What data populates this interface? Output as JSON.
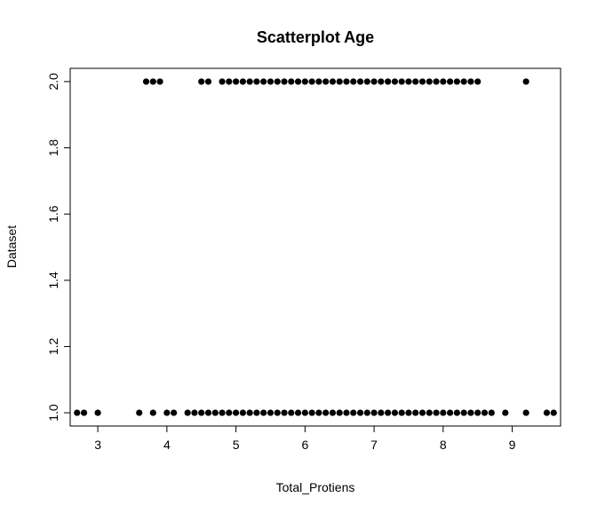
{
  "chart_data": {
    "type": "scatter",
    "title": "Scatterplot Age",
    "xlabel": "Total_Protiens",
    "ylabel": "Dataset",
    "xlim": [
      2.6,
      9.7
    ],
    "ylim": [
      0.96,
      2.04
    ],
    "x_ticks": [
      3,
      4,
      5,
      6,
      7,
      8,
      9
    ],
    "y_ticks": [
      1.0,
      1.2,
      1.4,
      1.6,
      1.8,
      2.0
    ],
    "y_tick_labels": [
      "1.0",
      "1.2",
      "1.4",
      "1.6",
      "1.8",
      "2.0"
    ],
    "point_color": "#000000",
    "grid": false,
    "series": [
      {
        "x": [
          3.7,
          3.8,
          3.9,
          4.5,
          4.6,
          4.8,
          4.9,
          5.0,
          5.1,
          5.2,
          5.3,
          5.4,
          5.5,
          5.6,
          5.7,
          5.8,
          5.9,
          6.0,
          6.1,
          6.2,
          6.3,
          6.4,
          6.5,
          6.6,
          6.7,
          6.8,
          6.9,
          7.0,
          7.1,
          7.2,
          7.3,
          7.4,
          7.5,
          7.6,
          7.7,
          7.8,
          7.9,
          8.0,
          8.1,
          8.2,
          8.3,
          8.4,
          8.5,
          9.2
        ],
        "y": [
          2,
          2,
          2,
          2,
          2,
          2,
          2,
          2,
          2,
          2,
          2,
          2,
          2,
          2,
          2,
          2,
          2,
          2,
          2,
          2,
          2,
          2,
          2,
          2,
          2,
          2,
          2,
          2,
          2,
          2,
          2,
          2,
          2,
          2,
          2,
          2,
          2,
          2,
          2,
          2,
          2,
          2,
          2,
          2
        ]
      },
      {
        "x": [
          2.7,
          2.8,
          3.0,
          3.6,
          3.8,
          4.0,
          4.1,
          4.3,
          4.4,
          4.5,
          4.6,
          4.7,
          4.8,
          4.9,
          5.0,
          5.1,
          5.2,
          5.3,
          5.4,
          5.5,
          5.6,
          5.7,
          5.8,
          5.9,
          6.0,
          6.1,
          6.2,
          6.3,
          6.4,
          6.5,
          6.6,
          6.7,
          6.8,
          6.9,
          7.0,
          7.1,
          7.2,
          7.3,
          7.4,
          7.5,
          7.6,
          7.7,
          7.8,
          7.9,
          8.0,
          8.1,
          8.2,
          8.3,
          8.4,
          8.5,
          8.6,
          8.7,
          8.9,
          9.2,
          9.5,
          9.6
        ],
        "y": [
          1,
          1,
          1,
          1,
          1,
          1,
          1,
          1,
          1,
          1,
          1,
          1,
          1,
          1,
          1,
          1,
          1,
          1,
          1,
          1,
          1,
          1,
          1,
          1,
          1,
          1,
          1,
          1,
          1,
          1,
          1,
          1,
          1,
          1,
          1,
          1,
          1,
          1,
          1,
          1,
          1,
          1,
          1,
          1,
          1,
          1,
          1,
          1,
          1,
          1,
          1,
          1,
          1,
          1,
          1,
          1
        ]
      }
    ]
  }
}
